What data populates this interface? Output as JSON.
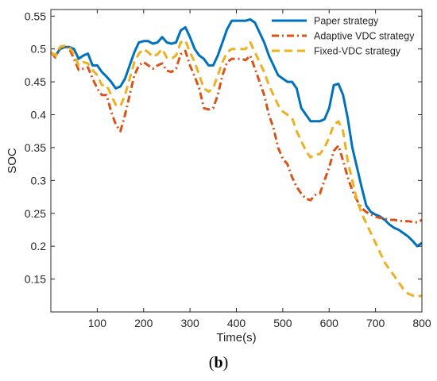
{
  "caption": {
    "open": "(",
    "letter": "b",
    "close": ")"
  },
  "chart_data": {
    "type": "line",
    "xlabel": "Time(s)",
    "ylabel": "SOC",
    "xlim": [
      0,
      800
    ],
    "ylim": [
      0.1,
      0.56
    ],
    "xticks": [
      100,
      200,
      300,
      400,
      500,
      600,
      700,
      800
    ],
    "yticks": [
      0.15,
      0.2,
      0.25,
      0.3,
      0.35,
      0.4,
      0.45,
      0.5,
      0.55
    ],
    "grid": false,
    "legend_position": "top-right",
    "series": [
      {
        "name": "Paper strategy",
        "color": "#0072BD",
        "style": "solid",
        "x": [
          0,
          10,
          20,
          30,
          40,
          50,
          60,
          70,
          80,
          90,
          100,
          110,
          120,
          130,
          140,
          150,
          160,
          170,
          180,
          190,
          200,
          210,
          220,
          230,
          240,
          250,
          260,
          270,
          280,
          290,
          300,
          310,
          320,
          330,
          340,
          350,
          360,
          370,
          380,
          390,
          400,
          410,
          420,
          430,
          440,
          450,
          460,
          470,
          480,
          490,
          500,
          510,
          520,
          530,
          540,
          550,
          560,
          570,
          580,
          590,
          600,
          610,
          620,
          630,
          640,
          650,
          660,
          670,
          680,
          690,
          700,
          710,
          720,
          730,
          740,
          750,
          760,
          770,
          780,
          790,
          800
        ],
        "y": [
          0.495,
          0.49,
          0.5,
          0.503,
          0.503,
          0.5,
          0.485,
          0.49,
          0.493,
          0.475,
          0.475,
          0.465,
          0.458,
          0.45,
          0.44,
          0.443,
          0.455,
          0.475,
          0.495,
          0.51,
          0.512,
          0.512,
          0.508,
          0.51,
          0.518,
          0.51,
          0.508,
          0.51,
          0.528,
          0.533,
          0.518,
          0.5,
          0.49,
          0.485,
          0.475,
          0.475,
          0.49,
          0.51,
          0.53,
          0.543,
          0.543,
          0.543,
          0.543,
          0.545,
          0.54,
          0.525,
          0.51,
          0.49,
          0.475,
          0.46,
          0.455,
          0.45,
          0.45,
          0.44,
          0.41,
          0.4,
          0.39,
          0.39,
          0.39,
          0.393,
          0.41,
          0.445,
          0.447,
          0.43,
          0.395,
          0.35,
          0.32,
          0.29,
          0.262,
          0.252,
          0.248,
          0.245,
          0.24,
          0.233,
          0.228,
          0.225,
          0.22,
          0.215,
          0.208,
          0.2,
          0.205
        ]
      },
      {
        "name": "Adaptive VDC strategy",
        "color": "#D95319",
        "style": "dashdot",
        "x": [
          0,
          10,
          20,
          30,
          40,
          50,
          60,
          70,
          80,
          90,
          100,
          110,
          120,
          130,
          140,
          150,
          160,
          170,
          180,
          190,
          200,
          210,
          220,
          230,
          240,
          250,
          260,
          270,
          280,
          290,
          300,
          310,
          320,
          330,
          340,
          350,
          360,
          370,
          380,
          390,
          400,
          410,
          420,
          430,
          440,
          450,
          460,
          470,
          480,
          490,
          500,
          510,
          520,
          530,
          540,
          550,
          560,
          570,
          580,
          590,
          600,
          610,
          620,
          630,
          640,
          650,
          660,
          670,
          680,
          690,
          700,
          710,
          720,
          730,
          740,
          750,
          760,
          770,
          780,
          790,
          800
        ],
        "y": [
          0.495,
          0.487,
          0.503,
          0.505,
          0.5,
          0.485,
          0.468,
          0.47,
          0.472,
          0.455,
          0.44,
          0.43,
          0.43,
          0.405,
          0.385,
          0.375,
          0.4,
          0.43,
          0.46,
          0.475,
          0.48,
          0.475,
          0.47,
          0.475,
          0.478,
          0.467,
          0.465,
          0.47,
          0.492,
          0.497,
          0.475,
          0.458,
          0.44,
          0.41,
          0.408,
          0.41,
          0.43,
          0.46,
          0.48,
          0.485,
          0.485,
          0.485,
          0.483,
          0.49,
          0.47,
          0.45,
          0.43,
          0.4,
          0.38,
          0.35,
          0.333,
          0.325,
          0.305,
          0.29,
          0.28,
          0.272,
          0.27,
          0.278,
          0.28,
          0.3,
          0.32,
          0.345,
          0.353,
          0.33,
          0.305,
          0.285,
          0.27,
          0.258,
          0.252,
          0.248,
          0.245,
          0.243,
          0.242,
          0.24,
          0.24,
          0.239,
          0.238,
          0.238,
          0.237,
          0.236,
          0.24
        ]
      },
      {
        "name": "Fixed-VDC strategy",
        "color": "#EDB120",
        "style": "dashed",
        "x": [
          0,
          10,
          20,
          30,
          40,
          50,
          60,
          70,
          80,
          90,
          100,
          110,
          120,
          130,
          140,
          150,
          160,
          170,
          180,
          190,
          200,
          210,
          220,
          230,
          240,
          250,
          260,
          270,
          280,
          290,
          300,
          310,
          320,
          330,
          340,
          350,
          360,
          370,
          380,
          390,
          400,
          410,
          420,
          430,
          440,
          450,
          460,
          470,
          480,
          490,
          500,
          510,
          520,
          530,
          540,
          550,
          560,
          570,
          580,
          590,
          600,
          610,
          620,
          630,
          640,
          650,
          660,
          670,
          680,
          690,
          700,
          710,
          720,
          730,
          740,
          750,
          760,
          770,
          780,
          790,
          800
        ],
        "y": [
          0.495,
          0.49,
          0.503,
          0.505,
          0.503,
          0.492,
          0.475,
          0.48,
          0.478,
          0.468,
          0.46,
          0.445,
          0.445,
          0.43,
          0.415,
          0.413,
          0.43,
          0.455,
          0.48,
          0.493,
          0.5,
          0.495,
          0.488,
          0.492,
          0.5,
          0.487,
          0.485,
          0.49,
          0.51,
          0.513,
          0.495,
          0.48,
          0.46,
          0.44,
          0.435,
          0.44,
          0.46,
          0.48,
          0.495,
          0.5,
          0.5,
          0.5,
          0.5,
          0.51,
          0.495,
          0.48,
          0.465,
          0.445,
          0.43,
          0.415,
          0.405,
          0.4,
          0.395,
          0.375,
          0.36,
          0.345,
          0.335,
          0.34,
          0.34,
          0.35,
          0.365,
          0.385,
          0.39,
          0.375,
          0.33,
          0.3,
          0.27,
          0.25,
          0.235,
          0.22,
          0.205,
          0.19,
          0.175,
          0.165,
          0.155,
          0.145,
          0.135,
          0.128,
          0.125,
          0.123,
          0.125
        ]
      }
    ]
  }
}
